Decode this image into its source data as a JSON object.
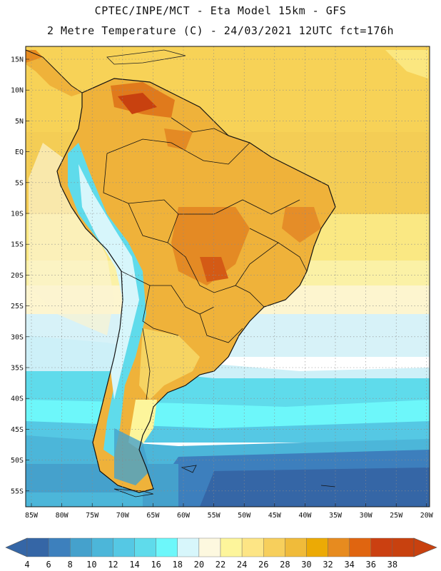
{
  "header": {
    "line1": "CPTEC/INPE/MCT -  Eta Model 15km - GFS",
    "line2": "2 Metre Temperature (C) - 24/03/2021 12UTC fct=176h"
  },
  "map": {
    "lat_labels": [
      "15N",
      "10N",
      "5N",
      "EQ",
      "5S",
      "10S",
      "15S",
      "20S",
      "25S",
      "30S",
      "35S",
      "40S",
      "45S",
      "50S",
      "55S"
    ],
    "lon_labels": [
      "85W",
      "80W",
      "75W",
      "70W",
      "65W",
      "60W",
      "55W",
      "50W",
      "45W",
      "40W",
      "35W",
      "30W",
      "25W",
      "20W"
    ]
  },
  "colorbar": {
    "labels": [
      "4",
      "6",
      "8",
      "10",
      "12",
      "14",
      "16",
      "18",
      "20",
      "22",
      "24",
      "26",
      "28",
      "30",
      "32",
      "34",
      "36",
      "38"
    ],
    "colors": [
      "#3566a6",
      "#3d80bd",
      "#45a1cc",
      "#4cb6d9",
      "#55c8e4",
      "#5fdbeb",
      "#6df7fa",
      "#d7f6fb",
      "#fdf8df",
      "#fdf59b",
      "#fde585",
      "#f7cf5c",
      "#f0bb3a",
      "#ecaa05",
      "#e78b1f",
      "#e06510",
      "#cb4011",
      "#c8410f"
    ],
    "low_color": "#3566a6",
    "high_color": "#c8410f"
  }
}
